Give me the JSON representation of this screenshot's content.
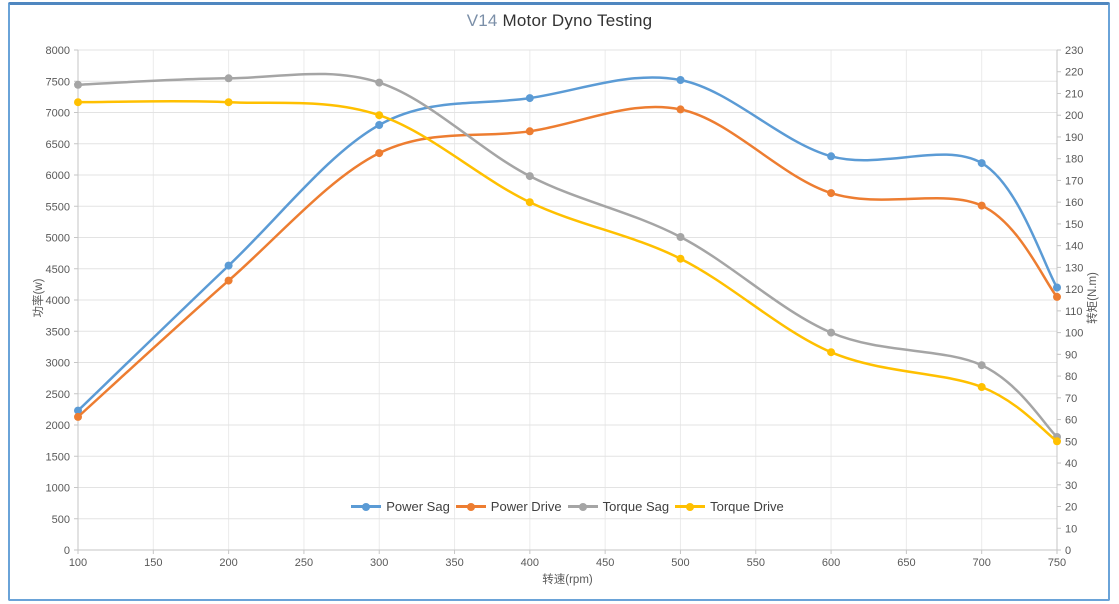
{
  "panel": {
    "border_color": "#5b9bd5"
  },
  "chart": {
    "title_accent": "V14",
    "title_text": " Motor Dyno Testing"
  },
  "chart_data": {
    "type": "line",
    "title": "V14 Motor Dyno Testing",
    "smooth": true,
    "grid": true,
    "legend_position": "bottom-center-inside",
    "x": [
      100,
      200,
      300,
      400,
      500,
      600,
      700,
      750
    ],
    "x_axis": {
      "label": "转速(rpm)",
      "min": 100,
      "max": 750,
      "tick_step": 50
    },
    "y_left_axis": {
      "label": "功率(w)",
      "min": 0,
      "max": 8000,
      "tick_step": 500
    },
    "y_right_axis": {
      "label": "转矩(N.m)",
      "min": 0,
      "max": 230,
      "tick_step": 10
    },
    "series": [
      {
        "name": "Power Sag",
        "axis": "left",
        "color": "#5B9BD5",
        "values": [
          2230,
          4550,
          6800,
          7230,
          7520,
          6300,
          6190,
          4200
        ]
      },
      {
        "name": "Power Drive",
        "axis": "left",
        "color": "#ED7D31",
        "values": [
          2130,
          4310,
          6350,
          6700,
          7050,
          5710,
          5510,
          4050
        ]
      },
      {
        "name": "Torque Sag",
        "axis": "right",
        "color": "#A5A5A5",
        "values": [
          214,
          217,
          215,
          172,
          144,
          100,
          85,
          52
        ]
      },
      {
        "name": "Torque Drive",
        "axis": "right",
        "color": "#FFC000",
        "values": [
          206,
          206,
          200,
          160,
          134,
          91,
          75,
          50
        ]
      }
    ]
  }
}
